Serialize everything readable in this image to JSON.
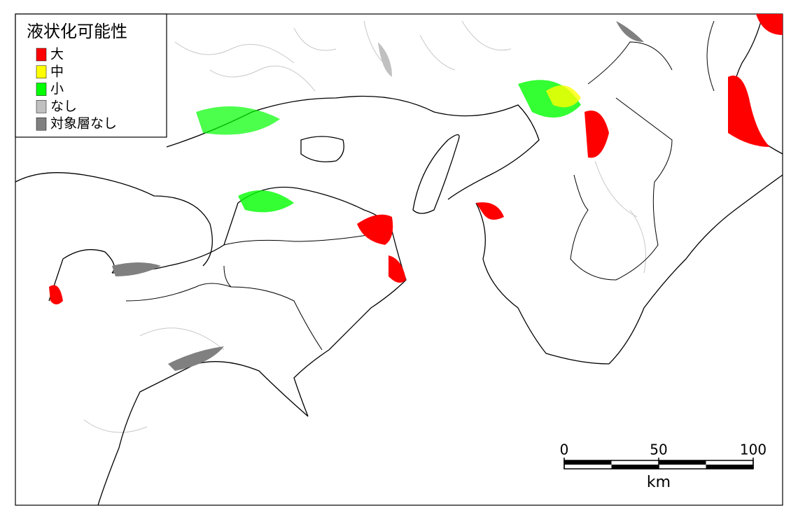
{
  "legend": {
    "title": "液状化可能性",
    "items": [
      {
        "label": "大",
        "color": "#ff0000"
      },
      {
        "label": "中",
        "color": "#ffff00"
      },
      {
        "label": "小",
        "color": "#00ff00"
      },
      {
        "label": "なし",
        "color": "#c0c0c0"
      },
      {
        "label": "対象層なし",
        "color": "#808080"
      }
    ]
  },
  "scale_bar": {
    "ticks": [
      0,
      50,
      100
    ],
    "unit": "km"
  }
}
